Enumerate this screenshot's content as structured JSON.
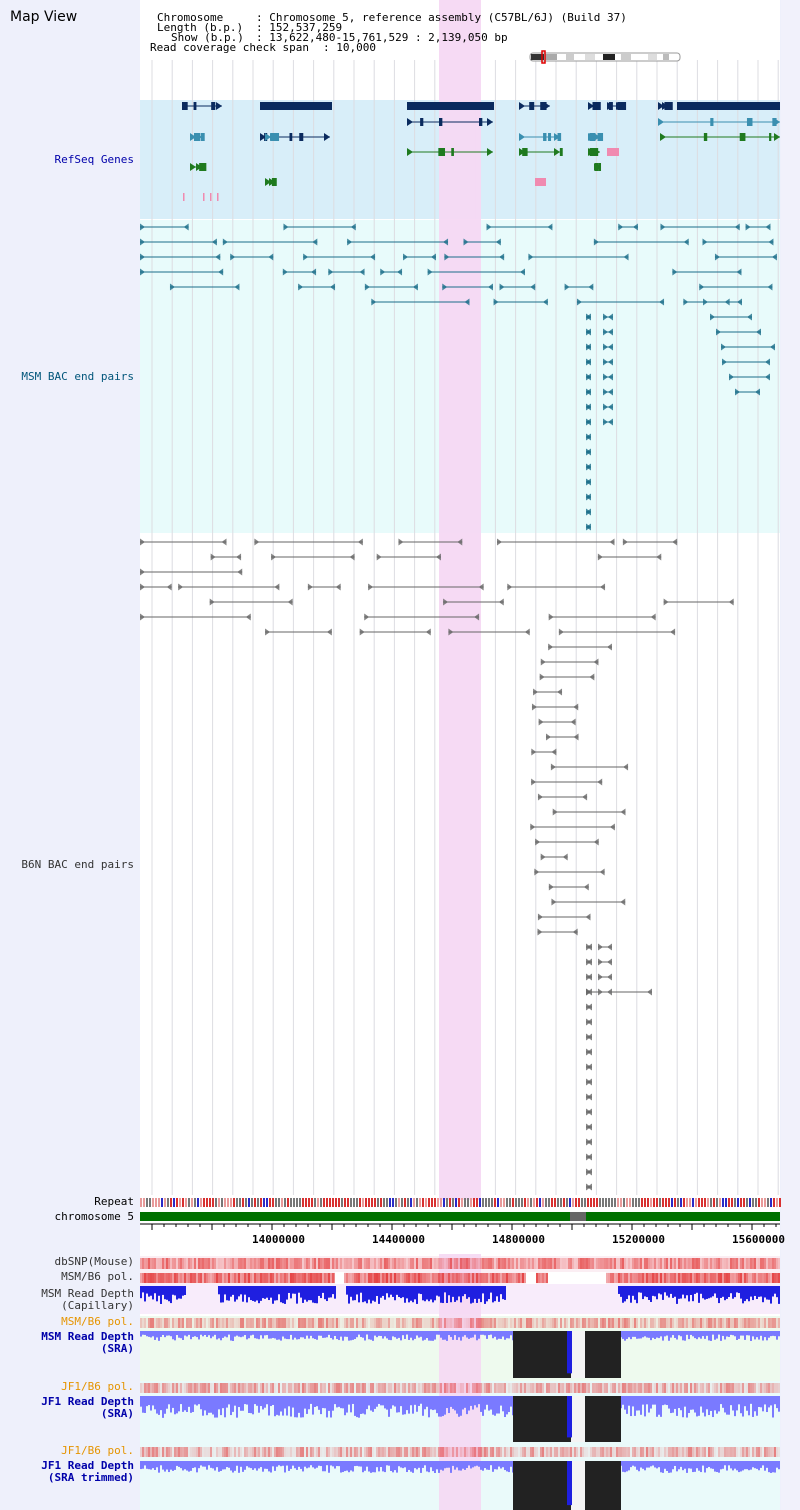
{
  "title": "Map View",
  "header": {
    "chromosome_key": "Chromosome",
    "chromosome_val": ": Chromosome 5, reference assembly (C57BL/6J) (Build 37)",
    "length_key": "Length (b.p.)",
    "length_val": ": 152,537,259",
    "show_key": "Show (b.p.)",
    "show_val": ": 13,622,480-15,761,529 : 2,139,050 bp",
    "coverage_key": "Read coverage check span",
    "coverage_val": ": 10,000"
  },
  "tracks": {
    "refseq": "RefSeq Genes",
    "msm_bac": "MSM BAC end pairs",
    "b6n_bac": "B6N BAC end pairs",
    "repeat": "Repeat",
    "chromosome": "chromosome 5",
    "dbsnp": "dbSNP(Mouse)",
    "msm_pol": "MSM/B6 pol.",
    "msm_depth_cap_1": "MSM Read Depth",
    "msm_depth_cap_2": "(Capillary)",
    "msm_pol_sra": "MSM/B6 pol.",
    "msm_depth_sra_1": "MSM Read Depth",
    "msm_depth_sra_2": "(SRA)",
    "jf1_pol": "JF1/B6 pol.",
    "jf1_depth_sra_1": "JF1 Read Depth",
    "jf1_depth_sra_2": "(SRA)",
    "jf1_pol_2": "JF1/B6 pol.",
    "jf1_depth_tr_1": "JF1 Read Depth",
    "jf1_depth_tr_2": "(SRA trimmed)"
  },
  "axis": {
    "ticks": [
      "14000000",
      "14400000",
      "14800000",
      "15200000",
      "15600000"
    ]
  },
  "colors": {
    "refseq_bg": "#d8eef9",
    "bac_bg": "#e8fbfb",
    "highlight": "#f5d8f3",
    "gene_dark": "#0a2a5e",
    "gene_teal": "#3a8fb0",
    "gene_green": "#1f7a1f",
    "gene_pink": "#f08ab0",
    "msm_bac": "#1a6e8a",
    "b6n_bac": "#666666",
    "chrom": "#007000",
    "depth_blue": "#1f1fe0",
    "depth_light": "#7a7aff",
    "pol_red": "#e23030"
  }
}
